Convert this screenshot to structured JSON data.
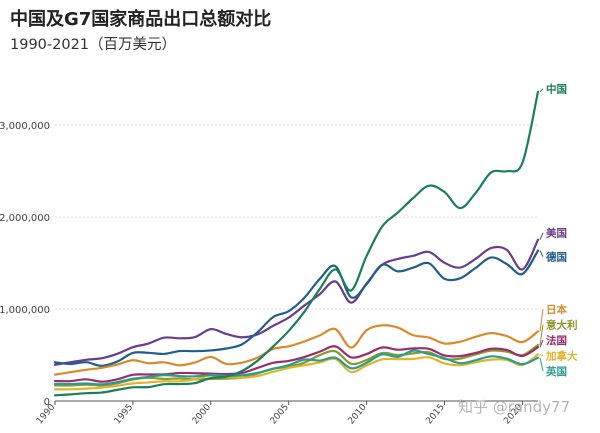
{
  "header": {
    "title": "中国及G7国家商品出口总额对比",
    "subtitle": "1990-2021（百万美元）"
  },
  "watermark": "知乎 @randy77",
  "chart_data": {
    "type": "line",
    "title": "中国及G7国家商品出口总额对比",
    "subtitle": "1990-2021（百万美元）",
    "xlabel": "",
    "ylabel": "",
    "xlim": [
      1990,
      2021
    ],
    "ylim": [
      0,
      3600000
    ],
    "x_ticks": [
      "1990",
      "1995",
      "2000",
      "2005",
      "2010",
      "2015",
      "2020"
    ],
    "y_ticks": [
      "0",
      "1,000,000",
      "2,000,000",
      "3,000,000"
    ],
    "grid": true,
    "x": [
      1990,
      1991,
      1992,
      1993,
      1994,
      1995,
      1996,
      1997,
      1998,
      1999,
      2000,
      2001,
      2002,
      2003,
      2004,
      2005,
      2006,
      2007,
      2008,
      2009,
      2010,
      2011,
      2012,
      2013,
      2014,
      2015,
      2016,
      2017,
      2018,
      2019,
      2020,
      2021
    ],
    "series": [
      {
        "name": "中国",
        "color": "#1a7f5a",
        "values": [
          62000,
          72000,
          85000,
          92000,
          121000,
          149000,
          151000,
          183000,
          184000,
          195000,
          249000,
          266000,
          326000,
          438000,
          593000,
          762000,
          969000,
          1220000,
          1431000,
          1202000,
          1578000,
          1898000,
          2049000,
          2209000,
          2342000,
          2273000,
          2098000,
          2263000,
          2487000,
          2499000,
          2590000,
          3364000
        ]
      },
      {
        "name": "美国",
        "color": "#6a3d8f",
        "values": [
          394000,
          422000,
          448000,
          465000,
          513000,
          585000,
          625000,
          689000,
          682000,
          696000,
          782000,
          729000,
          693000,
          725000,
          818000,
          907000,
          1038000,
          1163000,
          1300000,
          1070000,
          1278000,
          1482000,
          1545000,
          1579000,
          1621000,
          1503000,
          1451000,
          1547000,
          1665000,
          1643000,
          1431000,
          1754000
        ]
      },
      {
        "name": "德国",
        "color": "#1f5f8b",
        "values": [
          421000,
          402000,
          422000,
          382000,
          429000,
          523000,
          524000,
          512000,
          543000,
          542000,
          550000,
          571000,
          616000,
          748000,
          912000,
          977000,
          1122000,
          1329000,
          1466000,
          1128000,
          1271000,
          1482000,
          1410000,
          1451000,
          1498000,
          1329000,
          1334000,
          1448000,
          1561000,
          1489000,
          1382000,
          1636000
        ]
      },
      {
        "name": "日本",
        "color": "#d98a2b",
        "values": [
          287000,
          314000,
          339000,
          361000,
          396000,
          443000,
          411000,
          421000,
          388000,
          419000,
          479000,
          403000,
          417000,
          472000,
          566000,
          595000,
          647000,
          714000,
          781000,
          581000,
          770000,
          823000,
          799000,
          715000,
          690000,
          625000,
          645000,
          698000,
          738000,
          706000,
          641000,
          757000
        ]
      },
      {
        "name": "意大利",
        "color": "#8a9a2e",
        "values": [
          170000,
          169000,
          178000,
          169000,
          192000,
          234000,
          252000,
          240000,
          245000,
          235000,
          240000,
          244000,
          254000,
          300000,
          353000,
          373000,
          417000,
          500000,
          540000,
          406000,
          446000,
          523000,
          500000,
          518000,
          530000,
          457000,
          461000,
          507000,
          547000,
          537000,
          499000,
          610000
        ]
      },
      {
        "name": "法国",
        "color": "#9c2d6a",
        "values": [
          217000,
          217000,
          236000,
          210000,
          236000,
          285000,
          288000,
          290000,
          305000,
          302000,
          298000,
          293000,
          305000,
          360000,
          415000,
          436000,
          478000,
          537000,
          594000,
          475000,
          511000,
          582000,
          558000,
          572000,
          567000,
          495000,
          489000,
          523000,
          568000,
          555000,
          489000,
          585000
        ]
      },
      {
        "name": "加拿大",
        "color": "#e0b52a",
        "values": [
          127000,
          127000,
          135000,
          145000,
          166000,
          192000,
          202000,
          215000,
          214000,
          238000,
          277000,
          262000,
          252000,
          272000,
          317000,
          360000,
          388000,
          420000,
          456000,
          316000,
          388000,
          452000,
          455000,
          458000,
          475000,
          409000,
          390000,
          421000,
          450000,
          447000,
          391000,
          507000
        ]
      },
      {
        "name": "英国",
        "color": "#2a9d8f",
        "values": [
          185000,
          185000,
          190000,
          181000,
          205000,
          242000,
          262000,
          281000,
          271000,
          268000,
          284000,
          273000,
          280000,
          306000,
          349000,
          390000,
          450000,
          440000,
          471000,
          356000,
          416000,
          507000,
          480000,
          548000,
          510000,
          466000,
          411000,
          444000,
          486000,
          460000,
          400000,
          470000
        ]
      }
    ]
  }
}
